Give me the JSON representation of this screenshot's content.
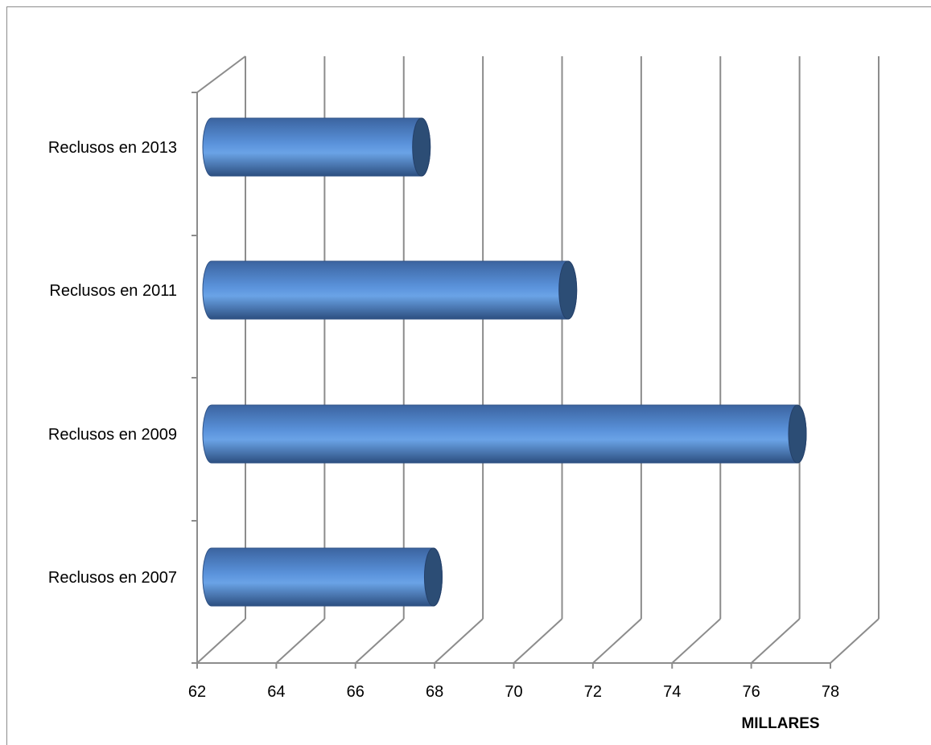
{
  "chart_data": {
    "type": "bar",
    "orientation": "horizontal",
    "style": "3d-cylinder",
    "categories": [
      "Reclusos en 2007",
      "Reclusos en 2009",
      "Reclusos en 2011",
      "Reclusos en 2013"
    ],
    "values": [
      67.6,
      76.8,
      71.0,
      67.3
    ],
    "xlabel": "MILLARES",
    "ylabel": "",
    "xlim": [
      62,
      78
    ],
    "xticks": [
      "62",
      "64",
      "66",
      "68",
      "70",
      "72",
      "74",
      "76",
      "78"
    ],
    "grid": true,
    "legend": "none",
    "colors": {
      "bar": "#4f81bd",
      "bar_light": "#6fa3e0",
      "bar_dark": "#2c4d75",
      "grid": "#8c8c8c"
    }
  }
}
